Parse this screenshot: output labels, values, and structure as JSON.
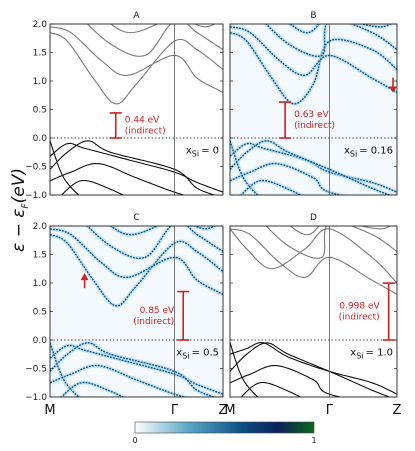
{
  "figure": {
    "ylabel_main": "ε − ε",
    "ylabel_sub": "F",
    "ylabel_unit": "(eV)",
    "colorbar": {
      "ticks": [
        "0",
        "1"
      ],
      "colors": [
        "#ffffff",
        "#5aa6c8",
        "#0b4f82",
        "#0a1f5a",
        "#0a6a1a"
      ]
    }
  },
  "chart_data": [
    {
      "type": "line",
      "title": "A",
      "band_style": "lines",
      "ylim": [
        -1.0,
        2.0
      ],
      "yticks": [
        "−1.0",
        "−0.5",
        "0.0",
        "0.5",
        "1.0",
        "1.5",
        "2.0"
      ],
      "xticks": [
        "M",
        "Γ",
        "Z"
      ],
      "fermi_level": 0.0,
      "x_sige": "x",
      "x_si_label": "Si",
      "x_si_value": "= 0",
      "gap_ev": 0.44,
      "gap_label_1": "0.44 eV",
      "gap_label_2": "(indirect)",
      "gap_bar_x": 0.38
    },
    {
      "type": "line",
      "title": "B",
      "band_style": "spectral",
      "ylim": [
        -1.0,
        2.0
      ],
      "yticks": [
        "−1.0",
        "−0.5",
        "0.0",
        "0.5",
        "1.0",
        "1.5",
        "2.0"
      ],
      "xticks": [
        "M",
        "Γ",
        "Z"
      ],
      "fermi_level": 0.0,
      "x_si_label": "Si",
      "x_si_value": "= 0.16",
      "gap_ev": 0.63,
      "gap_label_1": "0.63 eV",
      "gap_label_2": "(indirect)",
      "gap_bar_x": 0.33,
      "arrow_at": "Z"
    },
    {
      "type": "line",
      "title": "C",
      "band_style": "spectral",
      "ylim": [
        -1.0,
        2.0
      ],
      "yticks": [
        "−1.0",
        "−0.5",
        "0.0",
        "0.5",
        "1.0",
        "1.5",
        "2.0"
      ],
      "xticks": [
        "M",
        "Γ",
        "Z"
      ],
      "fermi_level": 0.0,
      "x_si_label": "Si",
      "x_si_value": "= 0.5",
      "gap_ev": 0.85,
      "gap_label_1": "0.85 eV",
      "gap_label_2": "(indirect)",
      "gap_bar_x": 0.77,
      "arrow_at": "valley"
    },
    {
      "type": "line",
      "title": "D",
      "band_style": "lines",
      "ylim": [
        -1.0,
        2.0
      ],
      "yticks": [
        "−1.0",
        "−0.5",
        "0.0",
        "0.5",
        "1.0",
        "1.5",
        "2.0"
      ],
      "xticks": [
        "M",
        "Γ",
        "Z"
      ],
      "fermi_level": 0.0,
      "x_si_label": "Si",
      "x_si_value": "= 1.0",
      "gap_ev": 0.998,
      "gap_label_1": "0.998 eV",
      "gap_label_2": "(indirect)",
      "gap_bar_x": 0.95
    }
  ]
}
